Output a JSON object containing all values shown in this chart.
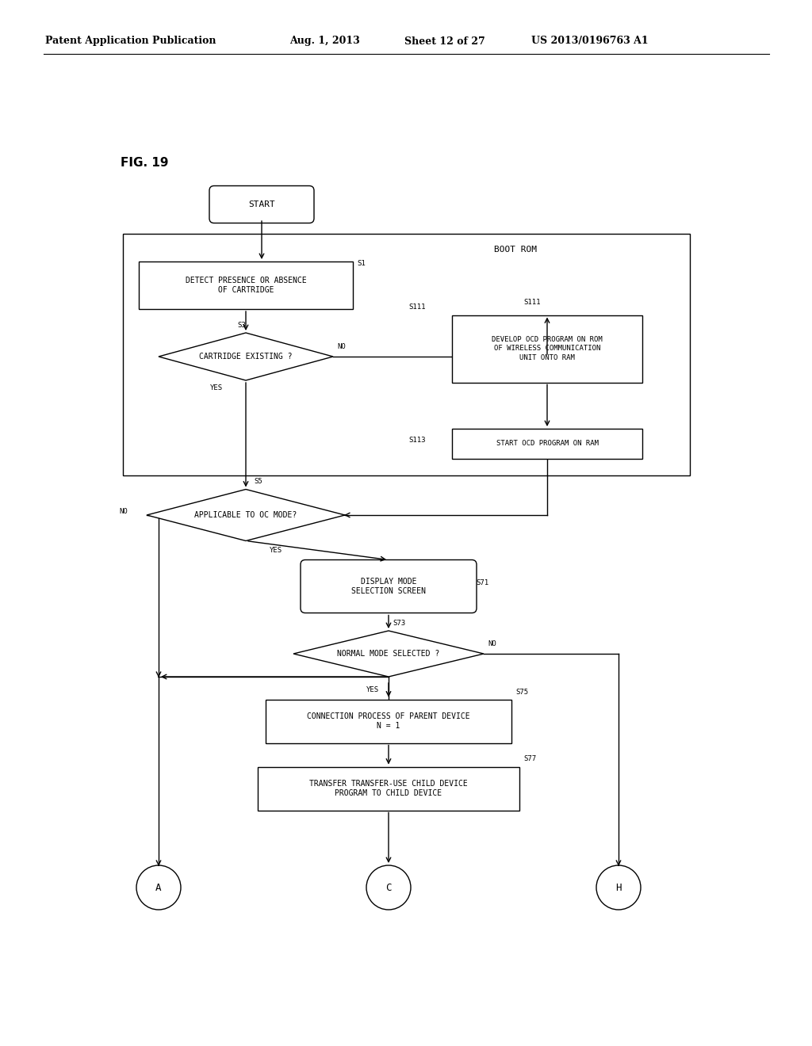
{
  "bg_color": "#ffffff",
  "header_text": "Patent Application Publication",
  "header_date": "Aug. 1, 2013",
  "header_sheet": "Sheet 12 of 27",
  "header_patent": "US 2013/0196763 A1",
  "fig_label": "FIG. 19",
  "font_size": 7.0,
  "line_color": "#000000",
  "text_color": "#000000"
}
